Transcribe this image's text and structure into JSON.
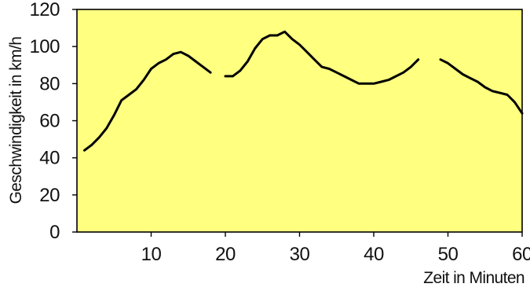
{
  "chart_data": {
    "type": "line",
    "xlabel": "Zeit in Minuten",
    "ylabel": "Geschwindigkeit in km/h",
    "xlim": [
      0,
      60
    ],
    "ylim": [
      0,
      120
    ],
    "x_ticks": [
      10,
      20,
      30,
      40,
      50,
      60
    ],
    "y_ticks": [
      0,
      20,
      40,
      60,
      80,
      100,
      120
    ],
    "x_tick_labels": [
      "10",
      "20",
      "30",
      "40",
      "50",
      "60"
    ],
    "y_tick_labels": [
      "0",
      "20",
      "40",
      "60",
      "80",
      "100",
      "120"
    ],
    "grid": false,
    "legend": "none",
    "colors": {
      "plot_background": "#FFFF80",
      "line": "#000000",
      "frame": "#000000"
    },
    "series": [
      {
        "segments": [
          {
            "x": [
              1,
              2,
              3,
              4,
              5,
              6,
              7,
              8,
              9,
              10,
              11,
              12,
              13,
              14,
              15,
              16,
              17,
              18
            ],
            "y": [
              44,
              47,
              51,
              56,
              63,
              71,
              74,
              77,
              82,
              88,
              91,
              93,
              96,
              97,
              95,
              92,
              89,
              86
            ]
          },
          {
            "x": [
              20,
              21,
              22,
              23,
              24,
              25,
              26,
              27,
              28,
              29,
              30,
              31,
              32,
              33,
              34,
              35,
              36,
              37,
              38,
              39,
              40,
              41,
              42,
              43,
              44,
              45,
              46
            ],
            "y": [
              84,
              84,
              87,
              92,
              99,
              104,
              106,
              106,
              108,
              104,
              101,
              97,
              93,
              89,
              88,
              86,
              84,
              82,
              80,
              80,
              80,
              81,
              82,
              84,
              86,
              89,
              93
            ]
          },
          {
            "x": [
              49,
              50,
              51,
              52,
              53,
              54,
              55,
              56,
              57,
              58,
              59,
              60
            ],
            "y": [
              93,
              91,
              88,
              85,
              83,
              81,
              78,
              76,
              75,
              74,
              70,
              64
            ]
          }
        ]
      }
    ]
  }
}
